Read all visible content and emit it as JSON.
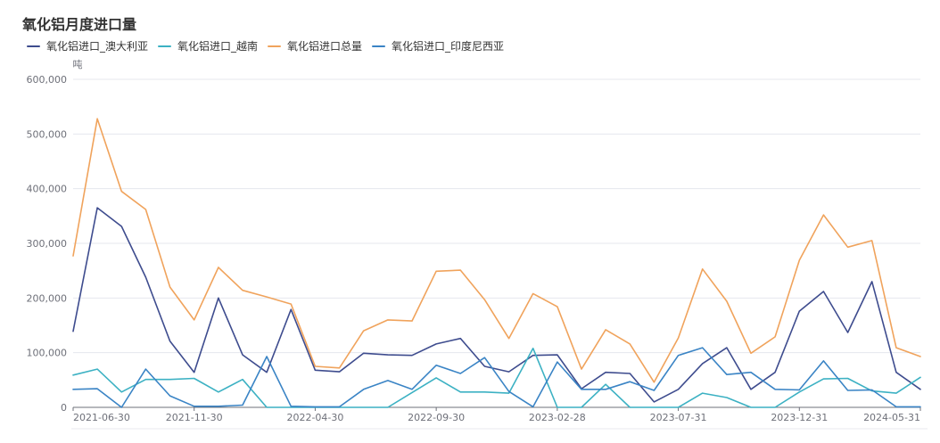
{
  "chart_data": {
    "type": "line",
    "title": "氧化铝月度进口量",
    "ylabel": "吨",
    "ylim": [
      0,
      600000
    ],
    "ytick_labels": [
      "0",
      "100,000",
      "200,000",
      "300,000",
      "400,000",
      "500,000",
      "600,000"
    ],
    "grid": true,
    "legend": "top-left",
    "x": [
      "2021-06-30",
      "2021-07-31",
      "2021-08-31",
      "2021-09-30",
      "2021-10-31",
      "2021-11-30",
      "2021-12-31",
      "2022-01-31",
      "2022-02-28",
      "2022-03-31",
      "2022-04-30",
      "2022-05-31",
      "2022-06-30",
      "2022-07-31",
      "2022-08-31",
      "2022-09-30",
      "2022-10-31",
      "2022-11-30",
      "2022-12-31",
      "2023-01-31",
      "2023-02-28",
      "2023-03-31",
      "2023-04-30",
      "2023-05-31",
      "2023-06-30",
      "2023-07-31",
      "2023-08-31",
      "2023-09-30",
      "2023-10-31",
      "2023-11-30",
      "2023-12-31",
      "2024-01-31",
      "2024-02-29",
      "2024-03-31",
      "2024-04-30",
      "2024-05-31"
    ],
    "series": [
      {
        "name": "氧化铝进口_澳大利亚",
        "color": "#3e4c8e",
        "values": [
          139000,
          365000,
          331000,
          238000,
          121000,
          64000,
          200000,
          96000,
          64000,
          179000,
          68000,
          65000,
          99000,
          96000,
          95000,
          116000,
          126000,
          75000,
          65000,
          95000,
          96000,
          34000,
          64000,
          62000,
          10000,
          33000,
          80000,
          109000,
          33000,
          64000,
          176000,
          212000,
          137000,
          230000,
          64000,
          33000
        ]
      },
      {
        "name": "氧化铝进口_越南",
        "color": "#3cb1c3",
        "values": [
          59000,
          70000,
          28000,
          51000,
          51000,
          53000,
          28000,
          51000,
          0,
          0,
          0,
          0,
          0,
          0,
          27000,
          54000,
          28000,
          28000,
          26000,
          108000,
          0,
          0,
          42000,
          0,
          0,
          0,
          26000,
          18000,
          0,
          0,
          28000,
          52000,
          53000,
          30000,
          26000,
          55000
        ]
      },
      {
        "name": "氧化铝进口总量",
        "color": "#f0a35c",
        "values": [
          277000,
          528000,
          395000,
          362000,
          220000,
          160000,
          256000,
          214000,
          202000,
          189000,
          75000,
          72000,
          140000,
          160000,
          158000,
          249000,
          251000,
          197000,
          126000,
          208000,
          184000,
          70000,
          142000,
          116000,
          46000,
          127000,
          253000,
          194000,
          99000,
          129000,
          269000,
          352000,
          293000,
          305000,
          109000,
          93000
        ]
      },
      {
        "name": "氧化铝进口_印度尼西亚",
        "color": "#3a84c5",
        "values": [
          33000,
          34000,
          0,
          70000,
          21000,
          2000,
          2000,
          4000,
          93000,
          2000,
          1000,
          1000,
          33000,
          49000,
          33000,
          77000,
          62000,
          91000,
          29000,
          1000,
          83000,
          33000,
          33000,
          47000,
          31000,
          95000,
          109000,
          60000,
          64000,
          33000,
          32000,
          85000,
          31000,
          32000,
          1000,
          1000
        ]
      }
    ]
  }
}
